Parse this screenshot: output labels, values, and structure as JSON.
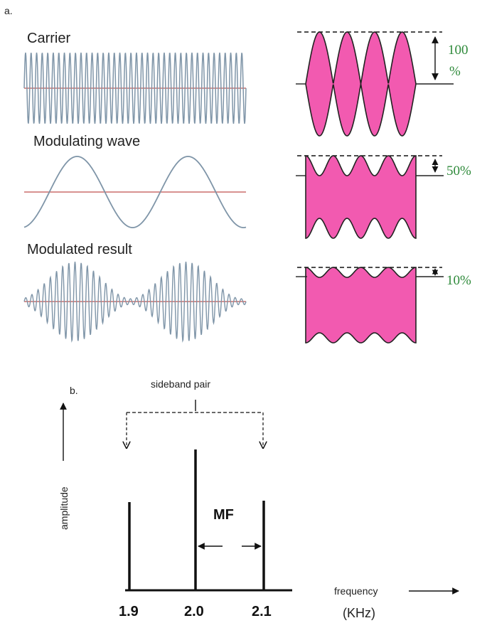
{
  "panels": {
    "a": "a.",
    "b": "b."
  },
  "left_column": {
    "carrier_label": "Carrier",
    "modulating_label": "Modulating wave",
    "modulated_label": "Modulated result"
  },
  "right_column": {
    "depths": [
      {
        "label": "100 %",
        "line1": "100",
        "line2": "%",
        "fraction": 1.0
      },
      {
        "label": "50%",
        "fraction": 0.5
      },
      {
        "label": "10%",
        "fraction": 0.1
      }
    ]
  },
  "spectrum": {
    "sideband_label": "sideband pair",
    "y_label": "amplitude",
    "x_label": "frequency",
    "x_unit": "(KHz)",
    "mf_label": "MF",
    "ticks": [
      "1.9",
      "2.0",
      "2.1"
    ]
  },
  "colors": {
    "wave": "#7f95a8",
    "axis_line": "#c0504d",
    "envelope_fill": "#f25ab0",
    "text_pct": "#2f8a3b"
  }
}
